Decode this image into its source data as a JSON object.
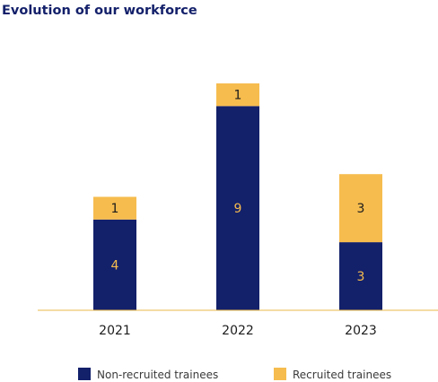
{
  "colors": {
    "non_recruited": "#13206a",
    "recruited": "#f6bc4e",
    "label_on_dark": "#f6bc4e",
    "label_on_light": "#1c1c1c",
    "axis": "#e8b84a",
    "title": "#13206a"
  },
  "chart_data": {
    "type": "bar",
    "stacked": true,
    "title": "Evolution of our workforce",
    "categories": [
      "2021",
      "2022",
      "2023"
    ],
    "series": [
      {
        "name": "Non-recruited trainees",
        "values": [
          4,
          9,
          3
        ]
      },
      {
        "name": "Recruited trainees",
        "values": [
          1,
          1,
          3
        ]
      }
    ],
    "ylim": [
      0,
      10
    ],
    "grid": false,
    "legend_position": "bottom"
  }
}
